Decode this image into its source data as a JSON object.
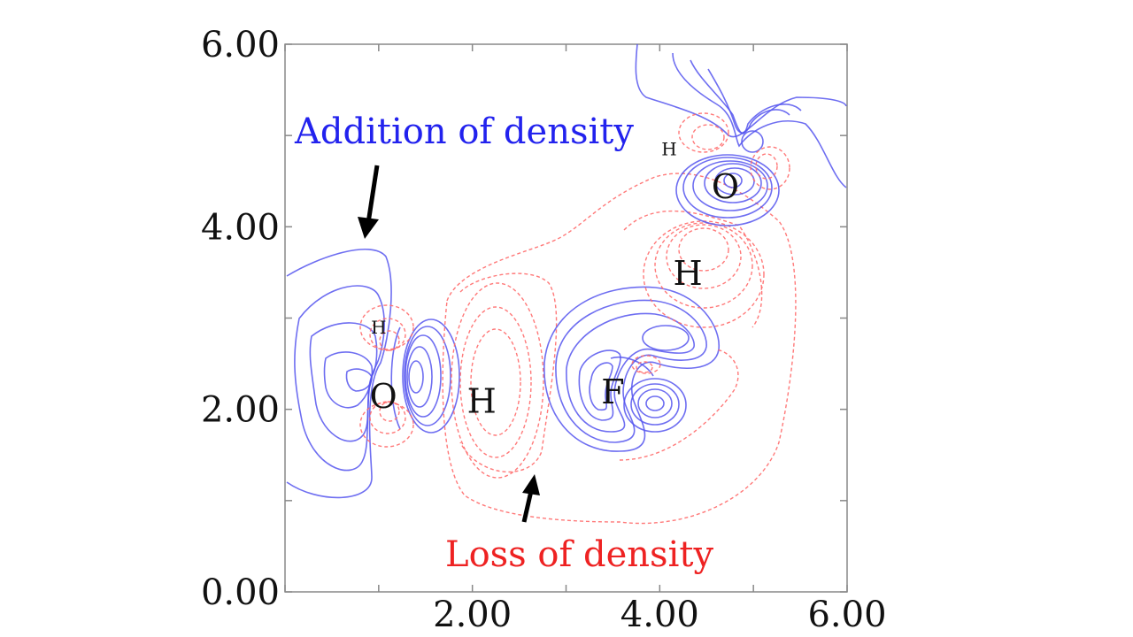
{
  "chart_data": {
    "type": "contour",
    "title": "",
    "xlabel": "",
    "ylabel": "",
    "xlim": [
      0,
      6
    ],
    "ylim": [
      0,
      6
    ],
    "x_ticks": [
      "2.00",
      "4.00",
      "6.00"
    ],
    "y_ticks": [
      "0.00",
      "2.00",
      "4.00",
      "6.00"
    ],
    "series": [
      {
        "name": "Addition of density",
        "color": "#4444ee",
        "line": "solid"
      },
      {
        "name": "Loss of density",
        "color": "#ff5555",
        "line": "dashed"
      }
    ],
    "atoms": [
      {
        "label": "O",
        "x": 1.05,
        "y": 2.15,
        "size": "large"
      },
      {
        "label": "H",
        "x": 1.0,
        "y": 2.9,
        "size": "small"
      },
      {
        "label": "H",
        "x": 2.1,
        "y": 2.1,
        "size": "large"
      },
      {
        "label": "F",
        "x": 3.5,
        "y": 2.2,
        "size": "large"
      },
      {
        "label": "H",
        "x": 4.3,
        "y": 3.5,
        "size": "large"
      },
      {
        "label": "O",
        "x": 4.7,
        "y": 4.45,
        "size": "large"
      },
      {
        "label": "H",
        "x": 4.1,
        "y": 4.85,
        "size": "small"
      }
    ],
    "annotations": [
      {
        "text": "Addition of density",
        "color": "#2222ee"
      },
      {
        "text": "Loss of density",
        "color": "#ee2222"
      }
    ]
  }
}
